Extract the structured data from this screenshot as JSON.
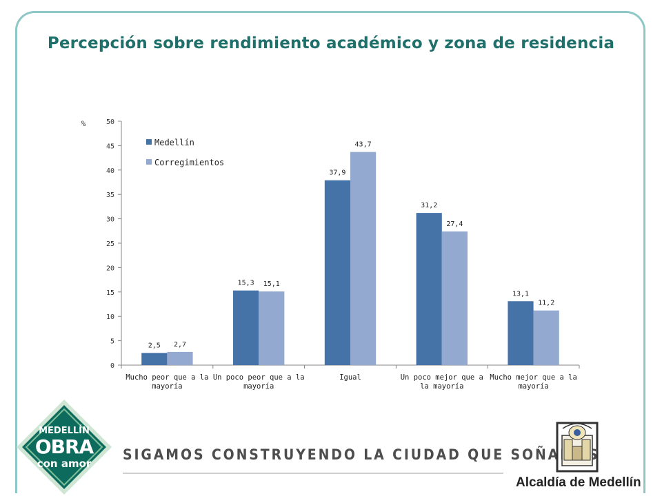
{
  "slide": {
    "title": "Percepción sobre rendimiento académico y zona de residencia"
  },
  "chart_data": {
    "type": "bar",
    "ylabel": "%",
    "ylim": [
      0,
      50
    ],
    "yticks": [
      0,
      5,
      10,
      15,
      20,
      25,
      30,
      35,
      40,
      45,
      50
    ],
    "categories": [
      [
        "Mucho peor que a la",
        "mayoría"
      ],
      [
        "Un poco peor que a la",
        "mayoría"
      ],
      [
        "Igual"
      ],
      [
        "Un poco mejor que a",
        "la mayoría"
      ],
      [
        "Mucho mejor que a la",
        "mayoría"
      ]
    ],
    "series": [
      {
        "name": "Medellín",
        "color": "#4572a7",
        "values": [
          2.5,
          15.3,
          37.9,
          31.2,
          13.1
        ],
        "labels": [
          "2,5",
          "15,3",
          "37,9",
          "31,2",
          "13,1"
        ]
      },
      {
        "name": "Corregimientos",
        "color": "#93a9cf",
        "values": [
          2.7,
          15.1,
          43.7,
          27.4,
          11.2
        ],
        "labels": [
          "2,7",
          "15,1",
          "43,7",
          "27,4",
          "11,2"
        ]
      }
    ],
    "legend_position": "top-left",
    "grid": false
  },
  "footer": {
    "slogan": "SIGAMOS CONSTRUYENDO LA CIUDAD QUE SOÑAMOS",
    "badge_line1": "MEDELLÍN",
    "badge_line2": "OBRA",
    "badge_line3": "con amor",
    "badge_color": "#0d6b5e",
    "institution": "Alcaldía de Medellín"
  }
}
